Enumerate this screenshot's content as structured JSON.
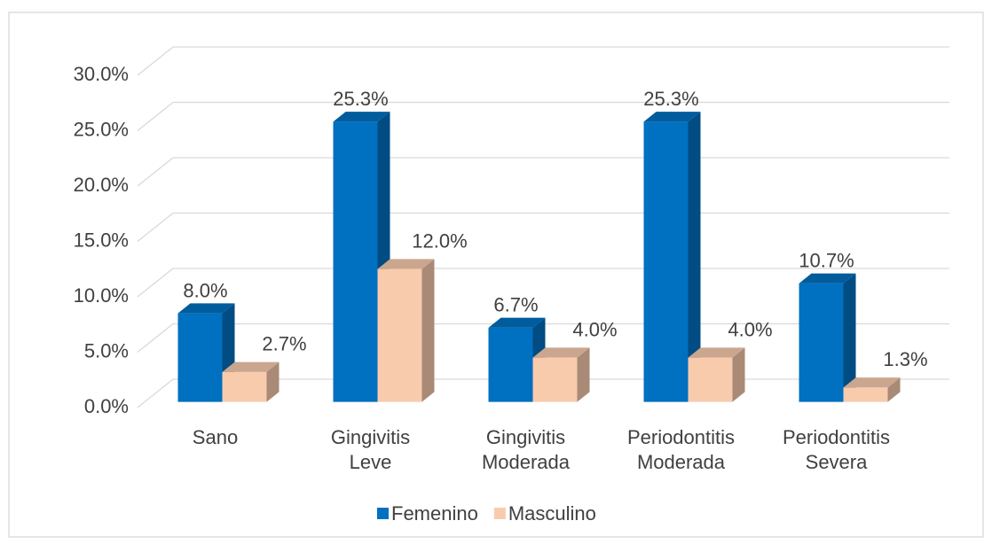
{
  "chart_data": {
    "type": "bar3d",
    "categories": [
      "Sano",
      "Gingivitis Leve",
      "Gingivitis Moderada",
      "Periodontitis Moderada",
      "Periodontitis Severa"
    ],
    "series": [
      {
        "name": "Femenino",
        "color": "#0070c0",
        "values": [
          8.0,
          25.3,
          6.7,
          25.3,
          10.7
        ],
        "value_labels": [
          "8.0%",
          "25.3%",
          "6.7%",
          "25.3%",
          "10.7%"
        ]
      },
      {
        "name": "Masculino",
        "color": "#f8cbad",
        "values": [
          2.7,
          12.0,
          4.0,
          4.0,
          1.3
        ],
        "value_labels": [
          "2.7%",
          "12.0%",
          "4.0%",
          "4.0%",
          "1.3%"
        ]
      }
    ],
    "ylim": [
      0,
      30
    ],
    "yticks": [
      {
        "value": 0,
        "label": "0.0%"
      },
      {
        "value": 5,
        "label": "5.0%"
      },
      {
        "value": 10,
        "label": "10.0%"
      },
      {
        "value": 15,
        "label": "15.0%"
      },
      {
        "value": 20,
        "label": "20.0%"
      },
      {
        "value": 25,
        "label": "25.0%"
      },
      {
        "value": 30,
        "label": "30.0%"
      }
    ],
    "grid": true,
    "legend": "bottom"
  }
}
